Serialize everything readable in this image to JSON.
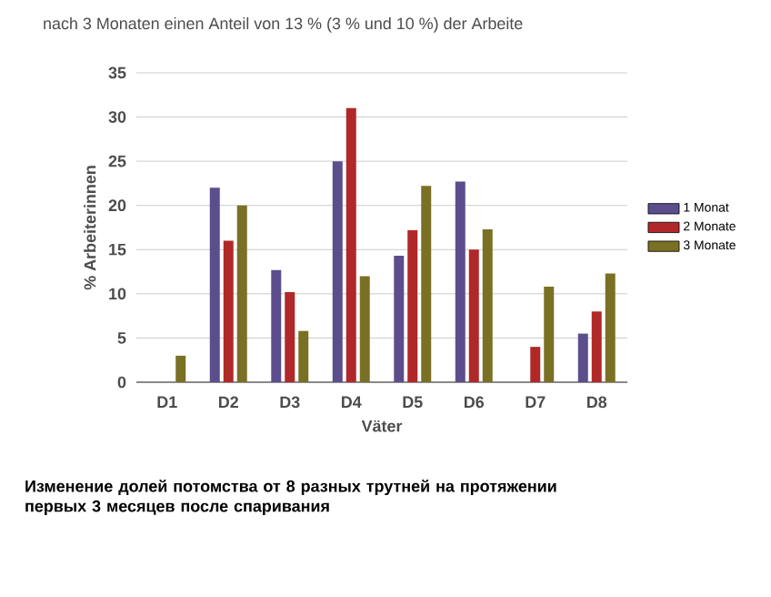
{
  "chart_data": {
    "type": "bar",
    "categories": [
      "D1",
      "D2",
      "D3",
      "D4",
      "D5",
      "D6",
      "D7",
      "D8"
    ],
    "xlabel": "Väter",
    "ylabel": "% Arbeiterinnen",
    "series": [
      {
        "name": "1 Monat",
        "color": "#5c4e8c",
        "values": [
          null,
          22,
          12.7,
          25,
          14.3,
          22.7,
          null,
          5.5
        ]
      },
      {
        "name": "2 Monate",
        "color": "#b02828",
        "values": [
          null,
          16,
          10.2,
          31,
          17.2,
          15,
          4,
          8
        ]
      },
      {
        "name": "3 Monate",
        "color": "#7a7024",
        "values": [
          3,
          20,
          5.8,
          12,
          22.2,
          17.3,
          10.8,
          12.3
        ]
      }
    ],
    "ylim": [
      0,
      35
    ],
    "yticks": [
      0,
      5,
      10,
      15,
      20,
      25,
      30,
      35
    ],
    "grid": "y",
    "legend": "right",
    "annotations": [
      "nach 3 Monaten einen Anteil von 13 % (3 % und 10 %) der Arbeite",
      "**Изменение долей потомства от 8 разных трутней на протяжении первых 3 месяцев после спаривания**"
    ]
  }
}
